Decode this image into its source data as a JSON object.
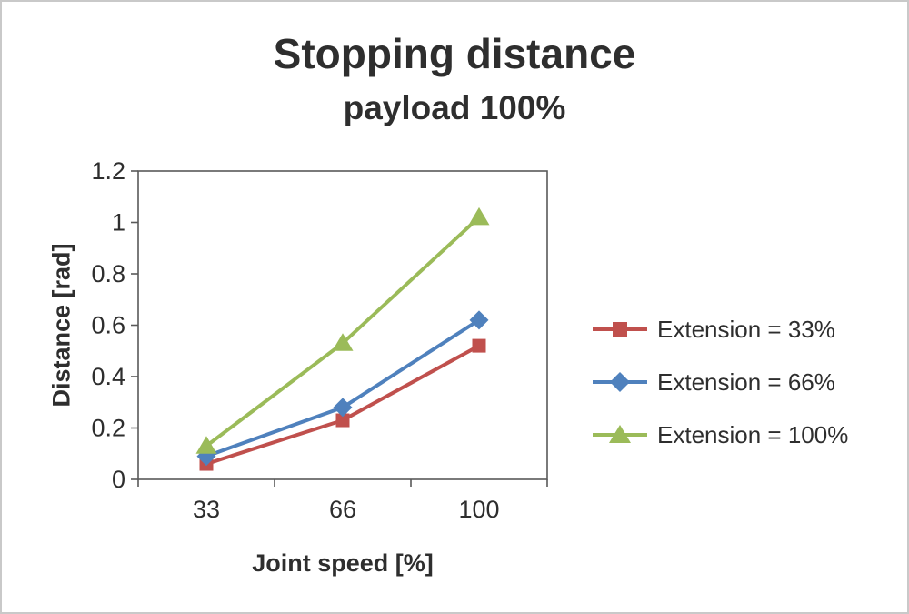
{
  "page": {
    "title": "Stopping distance",
    "subtitle": "payload 100%"
  },
  "chart_data": {
    "type": "line",
    "title": "Stopping distance",
    "subtitle": "payload 100%",
    "xlabel": "Joint speed [%]",
    "ylabel": "Distance [rad]",
    "categories": [
      "33",
      "66",
      "100"
    ],
    "series": [
      {
        "name": "Extension = 33%",
        "color": "#C0504D",
        "marker": "square",
        "values": [
          0.06,
          0.23,
          0.52
        ]
      },
      {
        "name": "Extension = 66%",
        "color": "#4F81BD",
        "marker": "diamond",
        "values": [
          0.09,
          0.28,
          0.62
        ]
      },
      {
        "name": "Extension = 100%",
        "color": "#9BBB59",
        "marker": "triangle",
        "values": [
          0.13,
          0.53,
          1.02
        ]
      }
    ],
    "ylim": [
      0,
      1.2
    ],
    "yticks": [
      0,
      0.2,
      0.4,
      0.6,
      0.8,
      1,
      1.2
    ],
    "grid": false,
    "legend_position": "right",
    "axis_color": "#595959",
    "text_color": "#2e2e2e"
  }
}
